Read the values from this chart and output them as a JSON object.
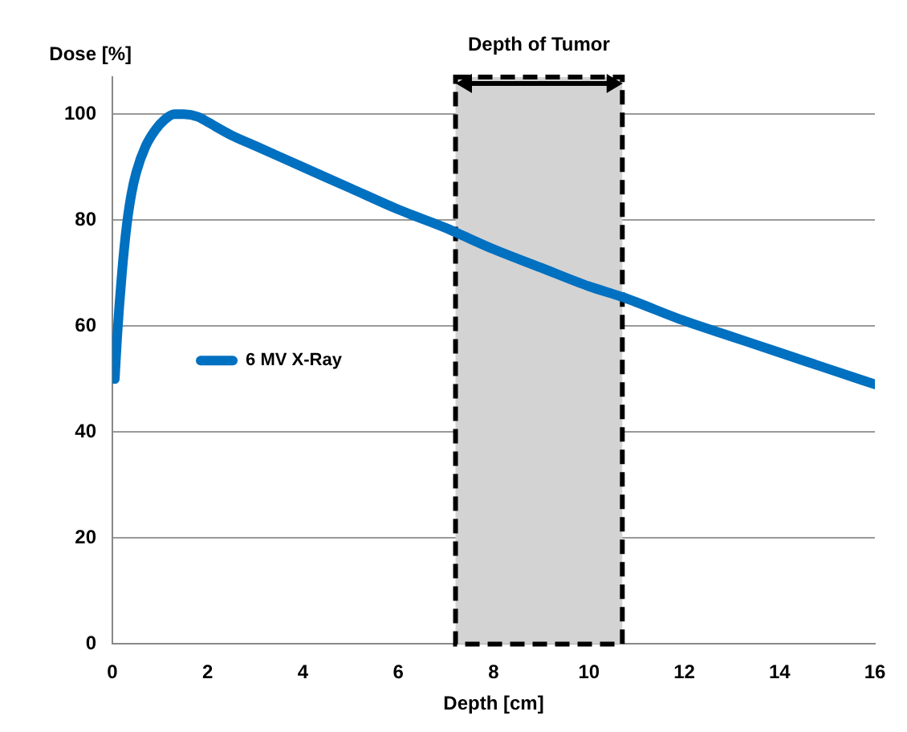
{
  "chart_data": {
    "type": "line",
    "xlabel": "Depth [cm]",
    "ylabel": "Dose [%]",
    "x": [
      0.05,
      0.1,
      0.2,
      0.3,
      0.4,
      0.5,
      0.7,
      0.9,
      1.1,
      1.3,
      1.5,
      1.8,
      2,
      2.5,
      3,
      4,
      5,
      6,
      7,
      7.25,
      8,
      9,
      10,
      10.7,
      12,
      13,
      14,
      15,
      16
    ],
    "series": [
      {
        "name": "6 MV X-Ray",
        "color": "#0070c0",
        "values": [
          50,
          58,
          70,
          79,
          85,
          89,
          94,
          97,
          99,
          100,
          100,
          99.5,
          98.5,
          96,
          94,
          90,
          86,
          82,
          78.5,
          77.5,
          74.5,
          71,
          67.5,
          65.5,
          61,
          58,
          55,
          52,
          49
        ]
      }
    ],
    "xlim": [
      0,
      16
    ],
    "xticks": [
      0,
      2,
      4,
      6,
      8,
      10,
      12,
      14,
      16
    ],
    "ylim": [
      0,
      107
    ],
    "yticks": [
      0,
      20,
      40,
      60,
      80,
      100
    ],
    "bands": [
      {
        "axis": "x",
        "from": 7.2,
        "to": 10.7,
        "label": "Depth of Tumor",
        "color": "#d3d3d3"
      }
    ],
    "grid": "y",
    "legend": "left",
    "marker": "none",
    "line_style": "solid"
  }
}
